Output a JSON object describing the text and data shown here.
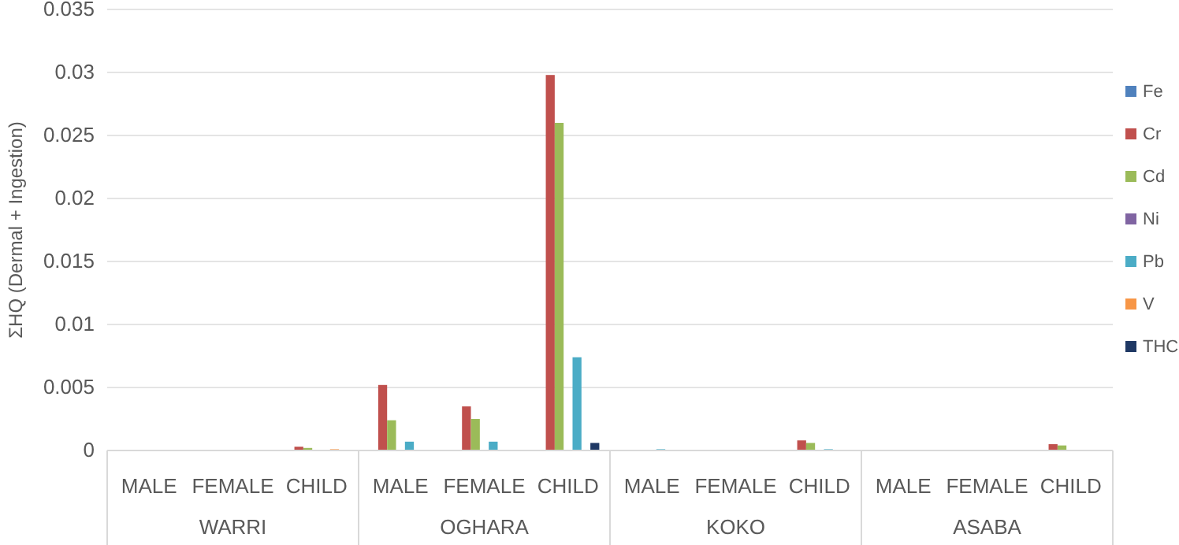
{
  "chart_data": {
    "type": "bar",
    "ylabel": "ΣHQ (Dermal + Ingestion)",
    "categories": [
      "MALE",
      "FEMALE",
      "CHILD",
      "MALE",
      "FEMALE",
      "CHILD",
      "MALE",
      "FEMALE",
      "CHILD",
      "MALE",
      "FEMALE",
      "CHILD"
    ],
    "annotations": [
      "WARRI",
      "OGHARA",
      "KOKO",
      "ASABA"
    ],
    "series": [
      {
        "name": "Fe",
        "color": "#4f81bd",
        "values": [
          0,
          0,
          0,
          0,
          0,
          0,
          0,
          0,
          0,
          0,
          0,
          0
        ]
      },
      {
        "name": "Cr",
        "color": "#c0504d",
        "values": [
          0,
          0,
          0.0003,
          0.0052,
          0.0035,
          0.0298,
          0,
          0,
          0.0008,
          0,
          0,
          0.0005
        ]
      },
      {
        "name": "Cd",
        "color": "#9bbb59",
        "values": [
          0,
          0,
          0.0002,
          0.0024,
          0.0025,
          0.026,
          0,
          0,
          0.0006,
          0,
          0,
          0.0004
        ]
      },
      {
        "name": "Ni",
        "color": "#8064a2",
        "values": [
          0,
          0,
          0,
          0,
          0,
          0,
          0,
          0,
          0,
          0,
          0,
          0
        ]
      },
      {
        "name": "Pb",
        "color": "#4bacc6",
        "values": [
          0,
          0,
          0,
          0.0007,
          0.0007,
          0.0074,
          0.0001,
          0,
          0.0001,
          0,
          0,
          0
        ]
      },
      {
        "name": "V",
        "color": "#f79646",
        "values": [
          0,
          0,
          0.0001,
          0,
          0,
          0,
          0,
          0,
          0,
          0,
          0,
          0
        ]
      },
      {
        "name": "THC",
        "color": "#1f3864",
        "values": [
          0,
          0,
          0,
          0,
          0,
          0.0006,
          0,
          0,
          0,
          0,
          0,
          0
        ]
      }
    ],
    "ylim": [
      0,
      0.035
    ],
    "yticks": [
      0,
      0.005,
      0.01,
      0.015,
      0.02,
      0.025,
      0.03,
      0.035
    ],
    "grid": "y",
    "legend": "right"
  }
}
